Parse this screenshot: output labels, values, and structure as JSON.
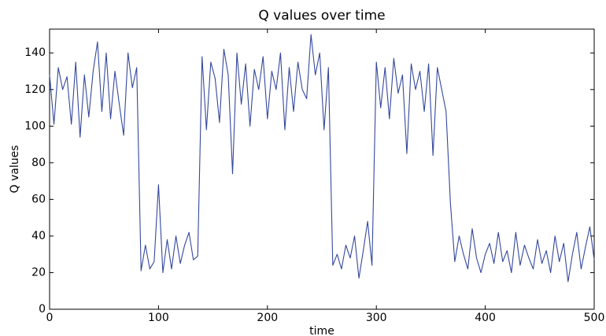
{
  "chart_data": {
    "type": "line",
    "title": "Q values over time",
    "x_label": "time",
    "y_label": "Q values",
    "color": "#34489c",
    "x": [
      0,
      4,
      8,
      12,
      16,
      20,
      24,
      28,
      32,
      36,
      40,
      44,
      48,
      52,
      56,
      60,
      64,
      68,
      72,
      76,
      80,
      84,
      88,
      92,
      96,
      100,
      104,
      108,
      112,
      116,
      120,
      124,
      128,
      132,
      136,
      140,
      144,
      148,
      152,
      156,
      160,
      164,
      168,
      172,
      176,
      180,
      184,
      188,
      192,
      196,
      200,
      204,
      208,
      212,
      216,
      220,
      224,
      228,
      232,
      236,
      240,
      244,
      248,
      252,
      256,
      260,
      264,
      268,
      272,
      276,
      280,
      284,
      288,
      292,
      296,
      300,
      304,
      308,
      312,
      316,
      320,
      324,
      328,
      332,
      336,
      340,
      344,
      348,
      352,
      356,
      360,
      364,
      368,
      372,
      376,
      380,
      384,
      388,
      392,
      396,
      400,
      404,
      408,
      412,
      416,
      420,
      424,
      428,
      432,
      436,
      440,
      444,
      448,
      452,
      456,
      460,
      464,
      468,
      472,
      476,
      480,
      484,
      488,
      492,
      496,
      500
    ],
    "values": [
      128,
      101,
      132,
      120,
      127,
      101,
      135,
      94,
      128,
      105,
      130,
      146,
      108,
      140,
      104,
      130,
      112,
      95,
      140,
      121,
      132,
      21,
      35,
      22,
      26,
      68,
      20,
      38,
      22,
      40,
      25,
      35,
      42,
      27,
      29,
      138,
      98,
      135,
      126,
      102,
      142,
      128,
      74,
      140,
      112,
      134,
      100,
      131,
      120,
      138,
      104,
      130,
      120,
      140,
      98,
      132,
      108,
      135,
      120,
      115,
      150,
      128,
      140,
      98,
      132,
      24,
      30,
      22,
      35,
      28,
      40,
      17,
      32,
      48,
      24,
      135,
      110,
      132,
      104,
      137,
      118,
      128,
      85,
      134,
      120,
      130,
      108,
      134,
      84,
      132,
      120,
      108,
      58,
      26,
      40,
      30,
      22,
      44,
      28,
      20,
      30,
      36,
      25,
      42,
      26,
      32,
      20,
      42,
      24,
      35,
      28,
      22,
      38,
      25,
      32,
      20,
      40,
      26,
      36,
      15,
      30,
      42,
      22,
      34,
      45,
      27
    ],
    "xlim": [
      0,
      500
    ],
    "ylim": [
      0,
      153
    ],
    "xticks": [
      0,
      100,
      200,
      300,
      400,
      500
    ],
    "yticks": [
      0,
      20,
      40,
      60,
      80,
      100,
      120,
      140
    ]
  }
}
